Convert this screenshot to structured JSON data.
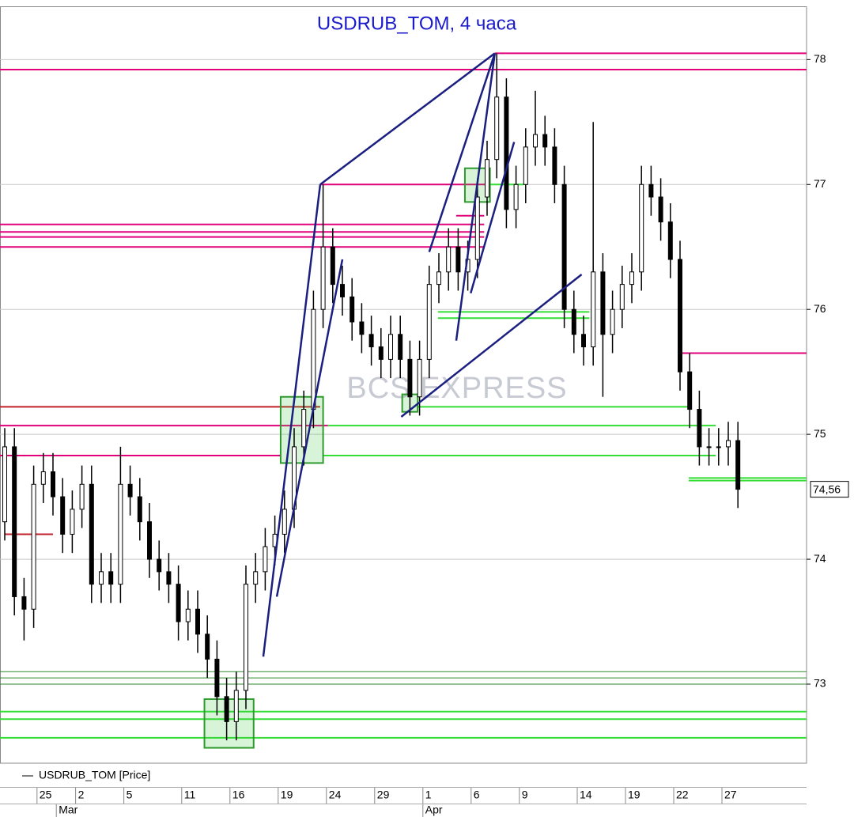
{
  "chart_data": {
    "type": "candlestick",
    "title": "USDRUB_TOM, 4 часа",
    "watermark": "BCS EXPRESS",
    "legend_label": "USDRUB_TOM [Price]",
    "categories": [
      null,
      null,
      null,
      null,
      "25",
      null,
      null,
      null,
      "2",
      null,
      null,
      null,
      null,
      "5",
      null,
      null,
      null,
      null,
      null,
      "11",
      null,
      null,
      null,
      null,
      "16",
      null,
      null,
      null,
      null,
      "19",
      null,
      null,
      null,
      null,
      "24",
      null,
      null,
      null,
      null,
      "29",
      null,
      null,
      null,
      null,
      "1",
      null,
      null,
      null,
      null,
      "6",
      null,
      null,
      null,
      null,
      "9",
      null,
      null,
      null,
      null,
      null,
      "14",
      null,
      null,
      null,
      null,
      "19",
      null,
      null,
      null,
      null,
      "22",
      null,
      null,
      null,
      null,
      "27",
      null
    ],
    "months": [
      null,
      null,
      null,
      null,
      null,
      null,
      "Mar",
      null,
      null,
      null,
      null,
      null,
      null,
      null,
      null,
      null,
      null,
      null,
      null,
      null,
      null,
      null,
      null,
      null,
      null,
      null,
      null,
      null,
      null,
      null,
      null,
      null,
      null,
      null,
      null,
      null,
      null,
      null,
      null,
      null,
      null,
      null,
      null,
      null,
      "Apr",
      null,
      null,
      null,
      null,
      null,
      null,
      null,
      null,
      null,
      null,
      null,
      null,
      null,
      null,
      null,
      null,
      null,
      null,
      null,
      null,
      null,
      null,
      null,
      null,
      null,
      null,
      null,
      null,
      null,
      null,
      null,
      null
    ],
    "open": [
      74.3,
      74.9,
      73.7,
      73.6,
      74.6,
      74.7,
      74.5,
      74.2,
      74.4,
      74.6,
      73.8,
      73.9,
      73.8,
      74.6,
      74.5,
      74.3,
      74.0,
      73.9,
      73.8,
      73.5,
      73.6,
      73.4,
      73.2,
      72.9,
      72.7,
      72.95,
      73.8,
      73.9,
      74.1,
      74.2,
      74.4,
      74.9,
      75.2,
      76.0,
      76.5,
      76.2,
      76.1,
      75.9,
      75.8,
      75.7,
      75.6,
      75.8,
      75.6,
      75.3,
      75.6,
      76.2,
      76.3,
      76.5,
      76.3,
      76.4,
      76.9,
      77.2,
      77.7,
      76.8,
      77.0,
      77.3,
      77.4,
      77.3,
      77.0,
      76.0,
      75.8,
      75.7,
      76.3,
      75.8,
      76.0,
      76.2,
      76.3,
      77.0,
      76.9,
      76.7,
      76.4,
      75.5,
      75.2,
      74.9,
      74.9,
      74.9,
      74.95
    ],
    "high": [
      75.05,
      75.05,
      73.85,
      74.75,
      74.85,
      74.85,
      74.65,
      74.55,
      74.75,
      74.75,
      74.05,
      74.05,
      74.9,
      74.75,
      74.65,
      74.45,
      74.15,
      74.05,
      73.95,
      73.75,
      73.75,
      73.55,
      73.35,
      73.05,
      73.1,
      73.95,
      74.05,
      74.25,
      74.35,
      74.55,
      75.05,
      75.35,
      76.15,
      77.0,
      76.65,
      76.35,
      76.25,
      76.05,
      75.95,
      75.85,
      75.95,
      75.95,
      75.75,
      75.75,
      76.35,
      76.45,
      76.65,
      76.65,
      76.55,
      77.05,
      77.35,
      78.05,
      77.85,
      77.15,
      77.45,
      77.75,
      77.55,
      77.45,
      77.15,
      76.15,
      75.95,
      77.5,
      76.45,
      76.15,
      76.35,
      76.45,
      77.15,
      77.15,
      77.05,
      76.85,
      76.55,
      75.65,
      75.35,
      75.05,
      75.05,
      75.1,
      75.1
    ],
    "low": [
      74.15,
      73.55,
      73.35,
      73.45,
      74.45,
      74.35,
      74.05,
      74.05,
      74.25,
      73.65,
      73.65,
      73.65,
      73.65,
      74.35,
      74.15,
      73.85,
      73.75,
      73.65,
      73.35,
      73.35,
      73.25,
      73.05,
      72.75,
      72.55,
      72.55,
      72.8,
      73.65,
      73.75,
      73.95,
      74.05,
      74.25,
      74.75,
      75.05,
      75.85,
      76.05,
      75.95,
      75.75,
      75.65,
      75.55,
      75.45,
      75.45,
      75.45,
      75.15,
      75.15,
      75.45,
      76.05,
      76.15,
      76.15,
      76.15,
      76.25,
      76.75,
      77.05,
      76.65,
      76.65,
      76.85,
      77.15,
      77.15,
      76.85,
      75.85,
      75.65,
      75.55,
      75.55,
      75.3,
      75.65,
      75.85,
      76.05,
      76.15,
      76.75,
      76.55,
      76.25,
      75.35,
      75.05,
      74.75,
      74.75,
      74.75,
      74.75,
      74.41
    ],
    "close": [
      74.9,
      73.7,
      73.6,
      74.6,
      74.7,
      74.5,
      74.2,
      74.4,
      74.6,
      73.8,
      73.9,
      73.8,
      74.6,
      74.5,
      74.3,
      74.0,
      73.9,
      73.8,
      73.5,
      73.6,
      73.4,
      73.2,
      72.9,
      72.7,
      72.95,
      73.8,
      73.9,
      74.1,
      74.2,
      74.4,
      74.9,
      75.2,
      76.0,
      76.5,
      76.2,
      76.1,
      75.9,
      75.8,
      75.7,
      75.6,
      75.8,
      75.6,
      75.3,
      75.6,
      76.2,
      76.3,
      76.5,
      76.3,
      76.4,
      76.9,
      77.2,
      77.7,
      76.8,
      77.0,
      77.3,
      77.4,
      77.3,
      77.0,
      76.0,
      75.8,
      75.7,
      76.3,
      75.8,
      76.0,
      76.2,
      76.3,
      77.0,
      76.9,
      76.7,
      76.4,
      75.5,
      75.2,
      74.9,
      74.9,
      74.9,
      74.95,
      74.56
    ],
    "last_price": {
      "value": 74.56,
      "label": "74,56"
    },
    "ylim": [
      72.37,
      78.42
    ],
    "yticks": [
      73,
      74,
      75,
      76,
      77,
      78
    ],
    "grid": true,
    "candle_color": "#000000",
    "levels": [
      {
        "color": "#e0007a",
        "lines": [
          [
            78.05,
            50.8,
            83.1
          ],
          [
            77.92,
            -0.5,
            83.1
          ],
          [
            77.0,
            32.7,
            50.3
          ],
          [
            76.75,
            46.8,
            49.7
          ],
          [
            76.68,
            -0.5,
            49.7
          ],
          [
            76.62,
            -0.5,
            49.7
          ],
          [
            76.58,
            -0.5,
            49.7
          ],
          [
            76.5,
            -0.5,
            49.7
          ],
          [
            75.65,
            70.0,
            83.1
          ],
          [
            75.07,
            -0.5,
            33.5
          ],
          [
            74.83,
            -0.5,
            28.6
          ]
        ]
      },
      {
        "color": "#c0202a",
        "lines": [
          [
            75.22,
            -0.5,
            32.7
          ],
          [
            74.2,
            0,
            5
          ]
        ]
      },
      {
        "color": "#33dd33",
        "lines": [
          [
            75.07,
            33.5,
            73.7
          ],
          [
            74.83,
            33.0,
            73.7
          ],
          [
            75.22,
            42.8,
            71.2
          ],
          [
            75.98,
            44.9,
            60.6
          ],
          [
            75.93,
            44.9,
            60.6
          ],
          [
            77.0,
            50.3,
            53.8
          ],
          [
            74.65,
            70.9,
            83.1
          ],
          [
            74.63,
            70.9,
            83.1
          ],
          [
            72.78,
            -0.5,
            83.1
          ],
          [
            72.72,
            -0.5,
            83.1
          ],
          [
            72.57,
            -0.5,
            83.1
          ]
        ]
      },
      {
        "color": "#2a8a2a",
        "lines": [
          [
            73.1,
            -0.5,
            83.1
          ],
          [
            73.05,
            -0.5,
            83.1
          ],
          [
            73.0,
            -0.5,
            83.1
          ]
        ]
      }
    ],
    "trend_color": "#1a1f80",
    "trend_lines": [
      [
        [
          26.8,
          73.22
        ],
        [
          32.7,
          77.0
        ]
      ],
      [
        [
          32.7,
          77.0
        ],
        [
          50.8,
          78.05
        ]
      ],
      [
        [
          50.8,
          78.05
        ],
        [
          46.8,
          75.75
        ]
      ],
      [
        [
          28.2,
          73.7
        ],
        [
          35.0,
          76.4
        ]
      ],
      [
        [
          44.0,
          76.46
        ],
        [
          50.8,
          78.05
        ]
      ],
      [
        [
          41.1,
          75.14
        ],
        [
          59.8,
          76.28
        ]
      ],
      [
        [
          48.3,
          76.13
        ],
        [
          52.8,
          77.34
        ]
      ]
    ],
    "box_color": "#2e9a2e",
    "boxes": [
      [
        20.7,
        25.8,
        72.88,
        72.49
      ],
      [
        28.6,
        33.0,
        75.3,
        74.77
      ],
      [
        41.2,
        42.8,
        75.32,
        75.18
      ],
      [
        47.7,
        50.3,
        77.13,
        76.86
      ]
    ]
  }
}
